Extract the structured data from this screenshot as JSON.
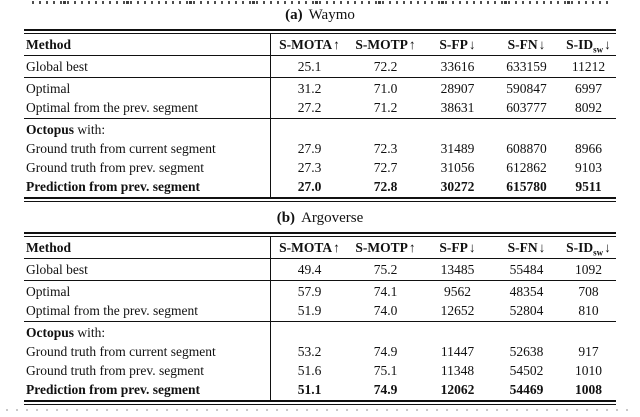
{
  "theme": {
    "text_color": "#111111",
    "background_color": "#ffffff",
    "rule_color": "#111111"
  },
  "tables": [
    {
      "label": "(a)",
      "title": "Waymo",
      "header": {
        "method": "Method",
        "cols": [
          {
            "text": "S-MOTA",
            "sub": "",
            "arrow": "↑"
          },
          {
            "text": "S-MOTP",
            "sub": "",
            "arrow": "↑"
          },
          {
            "text": "S-FP",
            "sub": "",
            "arrow": "↓"
          },
          {
            "text": "S-FN",
            "sub": "",
            "arrow": "↓"
          },
          {
            "text": "S-ID",
            "sub": "sw",
            "arrow": "↓"
          }
        ]
      },
      "rows": [
        {
          "method": "Global best",
          "values": [
            "25.1",
            "72.2",
            "33616",
            "633159",
            "11212"
          ]
        },
        {
          "method": "Optimal",
          "values": [
            "31.2",
            "71.0",
            "28907",
            "590847",
            "6997"
          ]
        },
        {
          "method": "Optimal from the prev. segment",
          "values": [
            "27.2",
            "71.2",
            "38631",
            "603777",
            "8092"
          ]
        },
        {
          "method_bold": "Octopus",
          "method_rest": " with:",
          "values": [
            "",
            "",
            "",
            "",
            ""
          ]
        },
        {
          "method": "Ground truth from current segment",
          "values": [
            "27.9",
            "72.3",
            "31489",
            "608870",
            "8966"
          ]
        },
        {
          "method": "Ground truth from prev. segment",
          "values": [
            "27.3",
            "72.7",
            "31056",
            "612862",
            "9103"
          ]
        },
        {
          "method": "Prediction from prev. segment",
          "values": [
            "27.0",
            "72.8",
            "30272",
            "615780",
            "9511"
          ]
        }
      ]
    },
    {
      "label": "(b)",
      "title": "Argoverse",
      "header": {
        "method": "Method",
        "cols": [
          {
            "text": "S-MOTA",
            "sub": "",
            "arrow": "↑"
          },
          {
            "text": "S-MOTP",
            "sub": "",
            "arrow": "↑"
          },
          {
            "text": "S-FP",
            "sub": "",
            "arrow": "↓"
          },
          {
            "text": "S-FN",
            "sub": "",
            "arrow": "↓"
          },
          {
            "text": "S-ID",
            "sub": "sw",
            "arrow": "↓"
          }
        ]
      },
      "rows": [
        {
          "method": "Global best",
          "values": [
            "49.4",
            "75.2",
            "13485",
            "55484",
            "1092"
          ]
        },
        {
          "method": "Optimal",
          "values": [
            "57.9",
            "74.1",
            "9562",
            "48354",
            "708"
          ]
        },
        {
          "method": "Optimal from the prev. segment",
          "values": [
            "51.9",
            "74.0",
            "12652",
            "52804",
            "810"
          ]
        },
        {
          "method_bold": "Octopus",
          "method_rest": " with:",
          "values": [
            "",
            "",
            "",
            "",
            ""
          ]
        },
        {
          "method": "Ground truth from current segment",
          "values": [
            "53.2",
            "74.9",
            "11447",
            "52638",
            "917"
          ]
        },
        {
          "method": "Ground truth from prev. segment",
          "values": [
            "51.6",
            "75.1",
            "11348",
            "54502",
            "1010"
          ]
        },
        {
          "method": "Prediction from prev. segment",
          "values": [
            "51.1",
            "74.9",
            "12062",
            "54469",
            "1008"
          ]
        }
      ]
    }
  ]
}
